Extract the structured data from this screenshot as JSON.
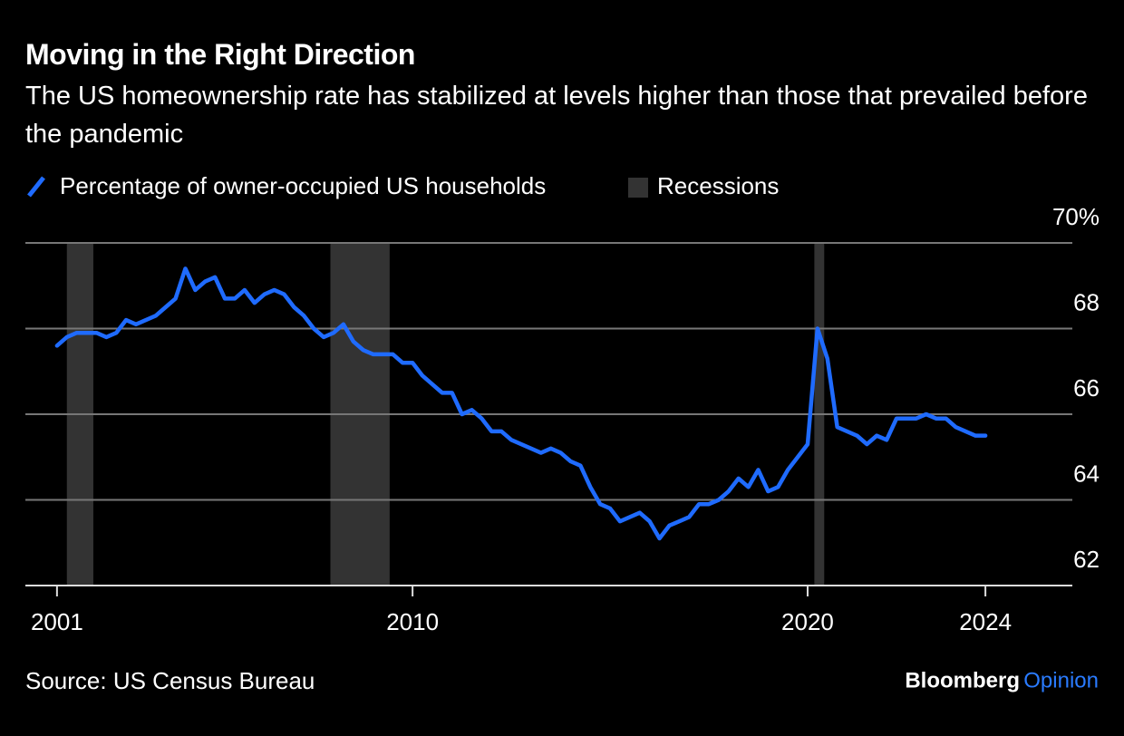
{
  "chart_data": {
    "type": "line",
    "title": "Moving in the Right Direction",
    "subtitle": "The US homeownership rate has stabilized at levels higher than those that prevailed before the pandemic",
    "source": "Source: US Census Bureau",
    "x": [
      2001,
      2001.25,
      2001.5,
      2001.75,
      2002,
      2002.25,
      2002.5,
      2002.75,
      2003,
      2003.25,
      2003.5,
      2003.75,
      2004,
      2004.25,
      2004.5,
      2004.75,
      2005,
      2005.25,
      2005.5,
      2005.75,
      2006,
      2006.25,
      2006.5,
      2006.75,
      2007,
      2007.25,
      2007.5,
      2007.75,
      2008,
      2008.25,
      2008.5,
      2008.75,
      2009,
      2009.25,
      2009.5,
      2009.75,
      2010,
      2010.25,
      2010.5,
      2010.75,
      2011,
      2011.25,
      2011.5,
      2011.75,
      2012,
      2012.25,
      2012.5,
      2012.75,
      2013,
      2013.25,
      2013.5,
      2013.75,
      2014,
      2014.25,
      2014.5,
      2014.75,
      2015,
      2015.25,
      2015.5,
      2015.75,
      2016,
      2016.25,
      2016.5,
      2016.75,
      2017,
      2017.25,
      2017.5,
      2017.75,
      2018,
      2018.25,
      2018.5,
      2018.75,
      2019,
      2019.25,
      2019.5,
      2019.75,
      2020,
      2020.25,
      2020.5,
      2020.75,
      2021,
      2021.25,
      2021.5,
      2021.75,
      2022,
      2022.25,
      2022.5,
      2022.75,
      2023,
      2023.25,
      2023.5,
      2023.75,
      2024,
      2024.25,
      2024.5
    ],
    "series": [
      {
        "name": "Percentage of owner-occupied US households",
        "color": "#1f6bff",
        "values": [
          67.6,
          67.8,
          67.9,
          67.9,
          67.9,
          67.8,
          67.9,
          68.2,
          68.1,
          68.2,
          68.3,
          68.5,
          68.7,
          69.4,
          68.9,
          69.1,
          69.2,
          68.7,
          68.7,
          68.9,
          68.6,
          68.8,
          68.9,
          68.8,
          68.5,
          68.3,
          68.0,
          67.8,
          67.9,
          68.1,
          67.7,
          67.5,
          67.4,
          67.4,
          67.4,
          67.2,
          67.2,
          66.9,
          66.7,
          66.5,
          66.5,
          66.0,
          66.1,
          65.9,
          65.6,
          65.6,
          65.4,
          65.3,
          65.2,
          65.1,
          65.2,
          65.1,
          64.9,
          64.8,
          64.3,
          63.9,
          63.8,
          63.5,
          63.6,
          63.7,
          63.5,
          63.1,
          63.4,
          63.5,
          63.6,
          63.9,
          63.9,
          64.0,
          64.2,
          64.5,
          64.3,
          64.7,
          64.2,
          64.3,
          64.7,
          65.0,
          65.3,
          68.0,
          67.3,
          65.7,
          65.6,
          65.5,
          65.3,
          65.5,
          65.4,
          65.9,
          65.9,
          65.9,
          66.0,
          65.9,
          65.9,
          65.7,
          65.6,
          65.5,
          65.5
        ]
      }
    ],
    "recessions": {
      "name": "Recessions",
      "color": "#333333",
      "periods": [
        [
          2001.25,
          2001.92
        ],
        [
          2007.92,
          2009.42
        ],
        [
          2020.17,
          2020.42
        ]
      ]
    },
    "xlim": [
      2000.2,
      2026.7
    ],
    "ylim": [
      62,
      70
    ],
    "xticks": [
      2001,
      2010,
      2020,
      {
        "value": 2024.5,
        "label": "2024"
      }
    ],
    "yticks": [
      62,
      64,
      66,
      68,
      {
        "value": 70,
        "label": "70%"
      }
    ],
    "grid": true
  },
  "branding": {
    "name": "Bloomberg",
    "product": "Opinion"
  }
}
